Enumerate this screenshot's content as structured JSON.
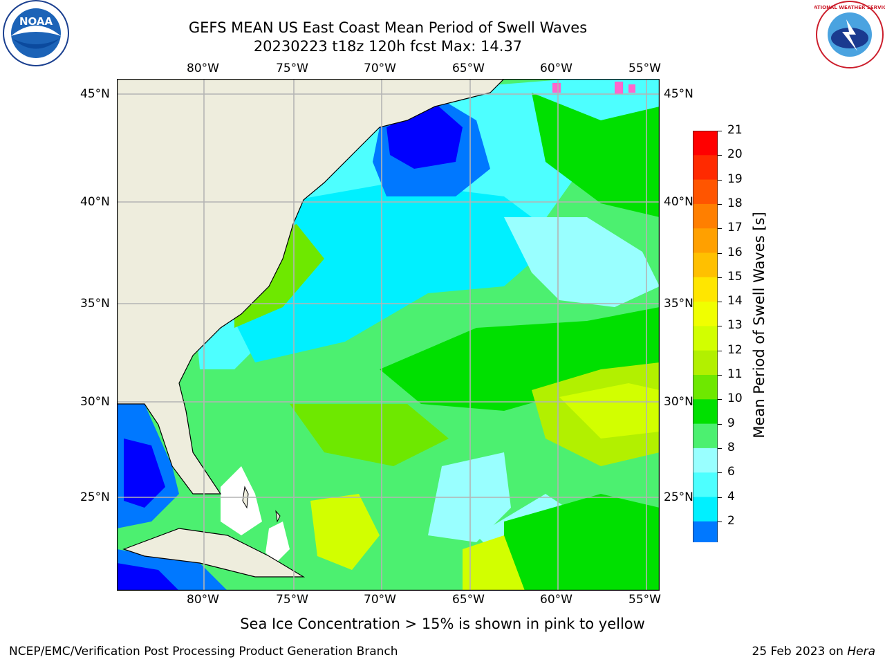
{
  "title": {
    "line1": "GEFS MEAN US East Coast Mean Period of Swell Waves",
    "line2": "20230223 t18z 120h fcst   Max: 14.37"
  },
  "map": {
    "lon_labels": [
      "80°W",
      "75°W",
      "70°W",
      "65°W",
      "60°W",
      "55°W"
    ],
    "lat_labels": [
      "45°N",
      "40°N",
      "35°N",
      "30°N",
      "25°N"
    ],
    "land_color": "#eeeddd",
    "grid_color": "#b4b4b4"
  },
  "colorbar": {
    "label": "Mean Period of Swell Waves [s]",
    "ticks": [
      "21",
      "20",
      "19",
      "18",
      "17",
      "16",
      "15",
      "14",
      "13",
      "12",
      "11",
      "10",
      "9",
      "8",
      "6",
      "4",
      "2"
    ],
    "colors_top_to_bottom": [
      "#ff0000",
      "#ff2a00",
      "#ff5500",
      "#ff7f00",
      "#ffa000",
      "#ffc000",
      "#ffe600",
      "#f0ff00",
      "#d2ff00",
      "#b2f000",
      "#6ee800",
      "#00e000",
      "#4cf070",
      "#99ffff",
      "#4dffff",
      "#00f0ff",
      "#0078ff"
    ],
    "extend_color": "#0000ff"
  },
  "caption": "Sea Ice Concentration > 15% is shown in pink to yellow",
  "footer": {
    "left": "NCEP/EMC/Verification Post Processing Product Generation Branch",
    "right_date": "25 Feb 2023 on ",
    "right_host": "Hera"
  },
  "logos": {
    "noaa": "NOAA",
    "nws": "NATIONAL WEATHER SERVICE"
  }
}
